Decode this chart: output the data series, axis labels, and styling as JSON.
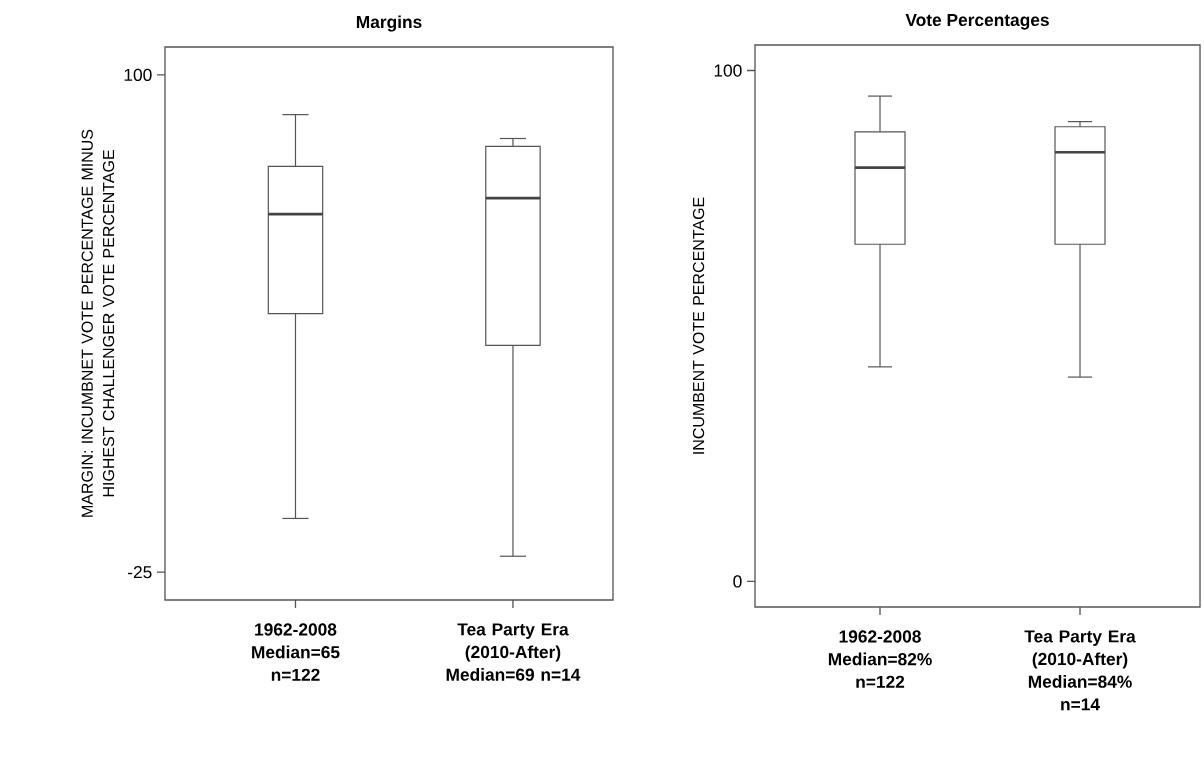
{
  "chart_data": [
    {
      "type": "box",
      "title": "Margins",
      "ylabel": "MARGIN: INCUMBNET VOTE PERCENTAGE MINUS HIGHEST CHALLENGER VOTE PERCENTAGE",
      "categories": [
        "1962-2008 Median=65 n=122",
        "Tea Party Era (2010-After) Median=69 n=14"
      ],
      "boxes": [
        {
          "low": -11.5,
          "q1": 40,
          "median": 65,
          "q3": 77,
          "high": 90
        },
        {
          "low": -21,
          "q1": 32,
          "median": 69,
          "q3": 82,
          "high": 84
        }
      ],
      "ylim": [
        -32,
        107
      ],
      "yticks": [
        -25,
        100
      ],
      "color": "#555555"
    },
    {
      "type": "box",
      "title": "Vote Percentages",
      "ylabel": "INCUMBENT VOTE PERCENTAGE",
      "categories": [
        "1962-2008 Median=82% n=122",
        "Tea Party Era (2010-After) Median=84% n=14"
      ],
      "boxes": [
        {
          "low": 42,
          "q1": 66,
          "median": 81,
          "q3": 88,
          "high": 95
        },
        {
          "low": 40,
          "q1": 66,
          "median": 84,
          "q3": 89,
          "high": 90
        }
      ],
      "ylim": [
        -5,
        105
      ],
      "yticks": [
        0,
        100
      ],
      "color": "#555555"
    }
  ]
}
